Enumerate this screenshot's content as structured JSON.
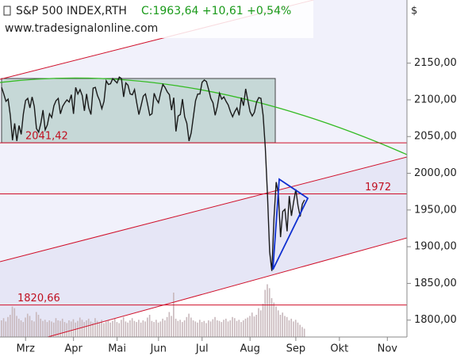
{
  "chart_data": {
    "type": "line",
    "title": "S&P 500 INDEX,RTH",
    "quote": "C:1963,64 +10,61 +0,54%",
    "source": "www.tradesignalonline.com",
    "currency": "$",
    "xlim": [
      0,
      190
    ],
    "xticks": [
      {
        "value": 11,
        "label": "Mrz"
      },
      {
        "value": 33,
        "label": "Apr"
      },
      {
        "value": 53,
        "label": "Mai"
      },
      {
        "value": 72,
        "label": "Jun"
      },
      {
        "value": 92,
        "label": "Jul"
      },
      {
        "value": 114,
        "label": "Aug"
      },
      {
        "value": 135,
        "label": "Sep"
      },
      {
        "value": 155,
        "label": "Okt"
      },
      {
        "value": 177,
        "label": "Nov"
      }
    ],
    "ylim": [
      1777,
      2236
    ],
    "yticks": [
      {
        "value": 1800,
        "label": "1800,00"
      },
      {
        "value": 1850,
        "label": "1850,00"
      },
      {
        "value": 1900,
        "label": "1900,00"
      },
      {
        "value": 1950,
        "label": "1950,00"
      },
      {
        "value": 2000,
        "label": "2000,00"
      },
      {
        "value": 2050,
        "label": "2050,00"
      },
      {
        "value": 2100,
        "label": "2100,00"
      },
      {
        "value": 2150,
        "label": "2150,00"
      }
    ],
    "levels": [
      {
        "value": 2041.42,
        "label": "2041,42"
      },
      {
        "value": 1972,
        "label": "1972"
      },
      {
        "value": 1820.66,
        "label": "1820,66"
      }
    ],
    "series": [
      {
        "name": "S&P 500",
        "color": "#1a1a1a",
        "values": [
          2117,
          2108,
          2098,
          2101,
          2079,
          2045,
          2068,
          2044,
          2065,
          2053,
          2081,
          2099,
          2102,
          2089,
          2104,
          2091,
          2061,
          2056,
          2068,
          2086,
          2059,
          2066,
          2081,
          2076,
          2092,
          2099,
          2102,
          2081,
          2091,
          2096,
          2100,
          2097,
          2107,
          2081,
          2117,
          2108,
          2114,
          2106,
          2085,
          2108,
          2089,
          2080,
          2116,
          2117,
          2106,
          2099,
          2088,
          2098,
          2126,
          2121,
          2122,
          2129,
          2126,
          2123,
          2131,
          2129,
          2104,
          2123,
          2120,
          2108,
          2107,
          2114,
          2096,
          2080,
          2092,
          2105,
          2108,
          2094,
          2079,
          2081,
          2109,
          2101,
          2096,
          2110,
          2121,
          2117,
          2111,
          2107,
          2086,
          2103,
          2057,
          2078,
          2080,
          2101,
          2077,
          2068,
          2044,
          2055,
          2077,
          2099,
          2108,
          2108,
          2124,
          2127,
          2125,
          2114,
          2102,
          2096,
          2079,
          2091,
          2109,
          2101,
          2104,
          2098,
          2093,
          2084,
          2077,
          2084,
          2089,
          2079,
          2103,
          2092,
          2115,
          2099,
          2084,
          2078,
          2083,
          2097,
          2103,
          2102,
          2079,
          2035,
          1971,
          1893,
          1867,
          1940,
          1988,
          1972,
          1913,
          1948,
          1951,
          1921,
          1969,
          1942,
          1961,
          1978,
          1956,
          1941,
          1958,
          1963.64
        ]
      },
      {
        "name": "Volume",
        "color": "#c8b8bc",
        "values": [
          30,
          34,
          28,
          36,
          40,
          55,
          52,
          38,
          33,
          30,
          27,
          35,
          42,
          38,
          30,
          28,
          45,
          40,
          33,
          29,
          31,
          27,
          30,
          28,
          26,
          34,
          30,
          29,
          33,
          27,
          25,
          30,
          28,
          32,
          26,
          29,
          35,
          31,
          27,
          30,
          33,
          28,
          26,
          34,
          29,
          27,
          31,
          25,
          28,
          30,
          26,
          29,
          33,
          27,
          25,
          31,
          36,
          28,
          26,
          30,
          34,
          29,
          27,
          31,
          26,
          30,
          28,
          35,
          40,
          29,
          27,
          31,
          26,
          28,
          33,
          30,
          36,
          45,
          38,
          80,
          33,
          29,
          31,
          27,
          30,
          36,
          42,
          35,
          30,
          28,
          26,
          31,
          27,
          29,
          25,
          30,
          28,
          32,
          36,
          30,
          29,
          27,
          31,
          33,
          28,
          30,
          36,
          34,
          29,
          31,
          27,
          30,
          33,
          35,
          38,
          44,
          37,
          40,
          52,
          48,
          60,
          85,
          95,
          88,
          70,
          62,
          55,
          48,
          40,
          44,
          38,
          36,
          30,
          33,
          28,
          31,
          26,
          22,
          18,
          15
        ]
      }
    ]
  }
}
